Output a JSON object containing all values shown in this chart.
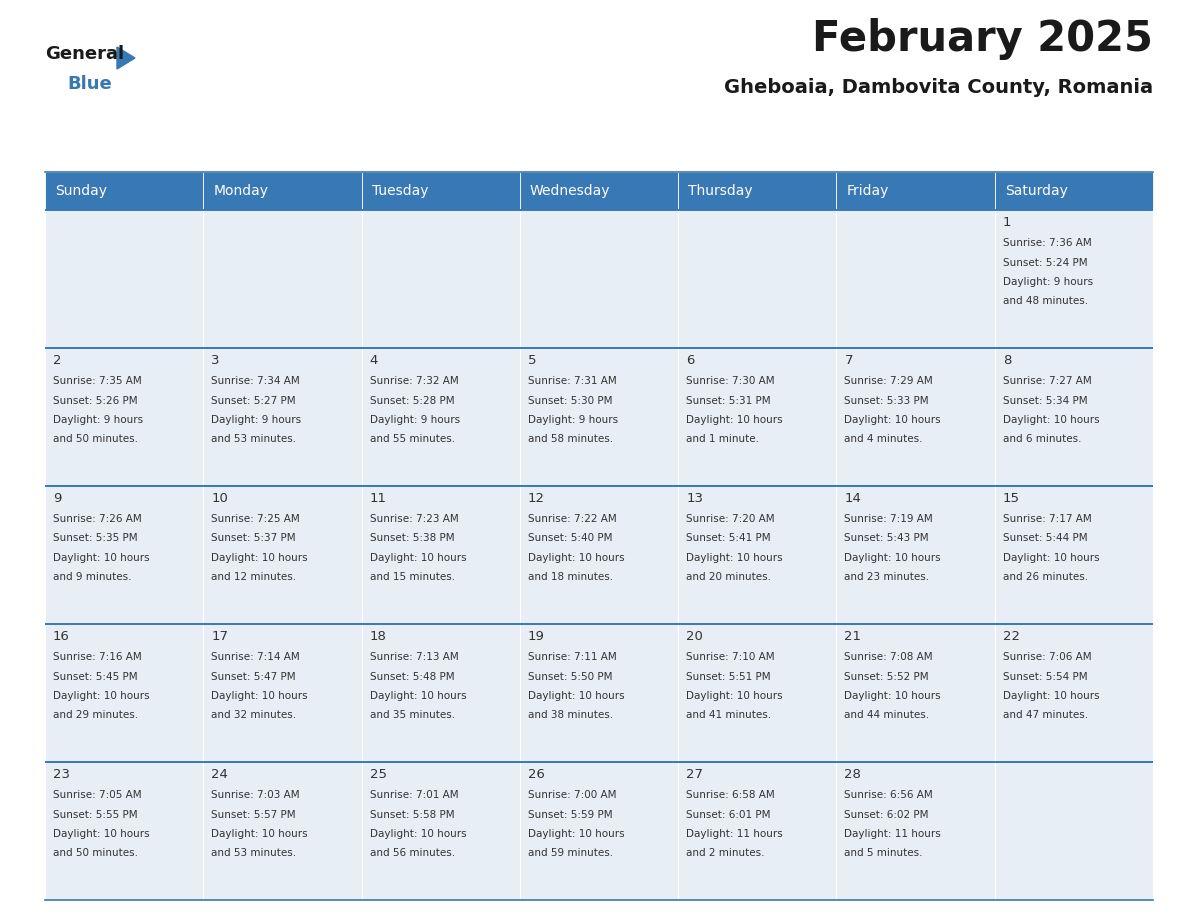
{
  "title": "February 2025",
  "subtitle": "Gheboaia, Dambovita County, Romania",
  "header_color": "#3878b4",
  "header_text_color": "#ffffff",
  "cell_bg_light": "#e8eef5",
  "cell_bg_white": "#f5f8fb",
  "border_color": "#3878b4",
  "text_color": "#333333",
  "days_of_week": [
    "Sunday",
    "Monday",
    "Tuesday",
    "Wednesday",
    "Thursday",
    "Friday",
    "Saturday"
  ],
  "weeks": [
    [
      {
        "day": "",
        "info": ""
      },
      {
        "day": "",
        "info": ""
      },
      {
        "day": "",
        "info": ""
      },
      {
        "day": "",
        "info": ""
      },
      {
        "day": "",
        "info": ""
      },
      {
        "day": "",
        "info": ""
      },
      {
        "day": "1",
        "info": "Sunrise: 7:36 AM\nSunset: 5:24 PM\nDaylight: 9 hours\nand 48 minutes."
      }
    ],
    [
      {
        "day": "2",
        "info": "Sunrise: 7:35 AM\nSunset: 5:26 PM\nDaylight: 9 hours\nand 50 minutes."
      },
      {
        "day": "3",
        "info": "Sunrise: 7:34 AM\nSunset: 5:27 PM\nDaylight: 9 hours\nand 53 minutes."
      },
      {
        "day": "4",
        "info": "Sunrise: 7:32 AM\nSunset: 5:28 PM\nDaylight: 9 hours\nand 55 minutes."
      },
      {
        "day": "5",
        "info": "Sunrise: 7:31 AM\nSunset: 5:30 PM\nDaylight: 9 hours\nand 58 minutes."
      },
      {
        "day": "6",
        "info": "Sunrise: 7:30 AM\nSunset: 5:31 PM\nDaylight: 10 hours\nand 1 minute."
      },
      {
        "day": "7",
        "info": "Sunrise: 7:29 AM\nSunset: 5:33 PM\nDaylight: 10 hours\nand 4 minutes."
      },
      {
        "day": "8",
        "info": "Sunrise: 7:27 AM\nSunset: 5:34 PM\nDaylight: 10 hours\nand 6 minutes."
      }
    ],
    [
      {
        "day": "9",
        "info": "Sunrise: 7:26 AM\nSunset: 5:35 PM\nDaylight: 10 hours\nand 9 minutes."
      },
      {
        "day": "10",
        "info": "Sunrise: 7:25 AM\nSunset: 5:37 PM\nDaylight: 10 hours\nand 12 minutes."
      },
      {
        "day": "11",
        "info": "Sunrise: 7:23 AM\nSunset: 5:38 PM\nDaylight: 10 hours\nand 15 minutes."
      },
      {
        "day": "12",
        "info": "Sunrise: 7:22 AM\nSunset: 5:40 PM\nDaylight: 10 hours\nand 18 minutes."
      },
      {
        "day": "13",
        "info": "Sunrise: 7:20 AM\nSunset: 5:41 PM\nDaylight: 10 hours\nand 20 minutes."
      },
      {
        "day": "14",
        "info": "Sunrise: 7:19 AM\nSunset: 5:43 PM\nDaylight: 10 hours\nand 23 minutes."
      },
      {
        "day": "15",
        "info": "Sunrise: 7:17 AM\nSunset: 5:44 PM\nDaylight: 10 hours\nand 26 minutes."
      }
    ],
    [
      {
        "day": "16",
        "info": "Sunrise: 7:16 AM\nSunset: 5:45 PM\nDaylight: 10 hours\nand 29 minutes."
      },
      {
        "day": "17",
        "info": "Sunrise: 7:14 AM\nSunset: 5:47 PM\nDaylight: 10 hours\nand 32 minutes."
      },
      {
        "day": "18",
        "info": "Sunrise: 7:13 AM\nSunset: 5:48 PM\nDaylight: 10 hours\nand 35 minutes."
      },
      {
        "day": "19",
        "info": "Sunrise: 7:11 AM\nSunset: 5:50 PM\nDaylight: 10 hours\nand 38 minutes."
      },
      {
        "day": "20",
        "info": "Sunrise: 7:10 AM\nSunset: 5:51 PM\nDaylight: 10 hours\nand 41 minutes."
      },
      {
        "day": "21",
        "info": "Sunrise: 7:08 AM\nSunset: 5:52 PM\nDaylight: 10 hours\nand 44 minutes."
      },
      {
        "day": "22",
        "info": "Sunrise: 7:06 AM\nSunset: 5:54 PM\nDaylight: 10 hours\nand 47 minutes."
      }
    ],
    [
      {
        "day": "23",
        "info": "Sunrise: 7:05 AM\nSunset: 5:55 PM\nDaylight: 10 hours\nand 50 minutes."
      },
      {
        "day": "24",
        "info": "Sunrise: 7:03 AM\nSunset: 5:57 PM\nDaylight: 10 hours\nand 53 minutes."
      },
      {
        "day": "25",
        "info": "Sunrise: 7:01 AM\nSunset: 5:58 PM\nDaylight: 10 hours\nand 56 minutes."
      },
      {
        "day": "26",
        "info": "Sunrise: 7:00 AM\nSunset: 5:59 PM\nDaylight: 10 hours\nand 59 minutes."
      },
      {
        "day": "27",
        "info": "Sunrise: 6:58 AM\nSunset: 6:01 PM\nDaylight: 11 hours\nand 2 minutes."
      },
      {
        "day": "28",
        "info": "Sunrise: 6:56 AM\nSunset: 6:02 PM\nDaylight: 11 hours\nand 5 minutes."
      },
      {
        "day": "",
        "info": ""
      }
    ]
  ],
  "logo_color_general": "#1a1a1a",
  "logo_color_blue": "#3878b4",
  "logo_triangle_color": "#3878b4",
  "fig_width": 11.88,
  "fig_height": 9.18,
  "dpi": 100
}
